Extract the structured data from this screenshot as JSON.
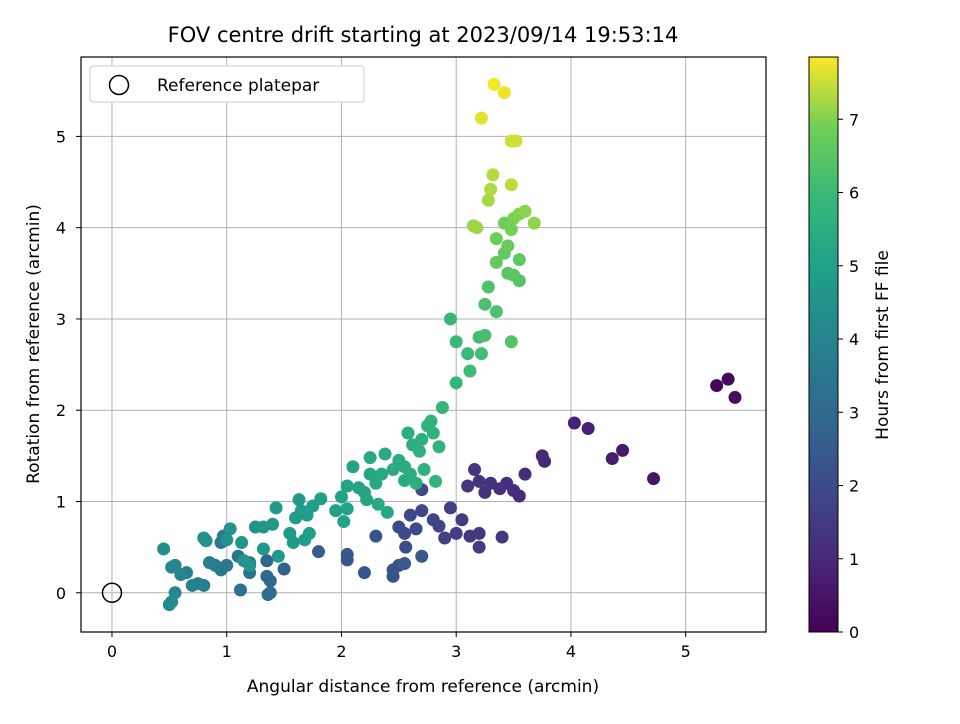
{
  "chart_data": {
    "type": "scatter",
    "title": "FOV centre drift starting at 2023/09/14 19:53:14",
    "xlabel": "Angular distance from reference (arcmin)",
    "ylabel": "Rotation from reference (arcmin)",
    "xlim": [
      -0.27,
      5.7
    ],
    "ylim": [
      -0.43,
      5.87
    ],
    "xticks": [
      0,
      1,
      2,
      3,
      4,
      5
    ],
    "yticks": [
      0,
      1,
      2,
      3,
      4,
      5
    ],
    "grid": true,
    "legend": {
      "position": "top-left",
      "entries": [
        "Reference platepar"
      ]
    },
    "reference_point": {
      "x": 0,
      "y": 0
    },
    "colorbar": {
      "label": "Hours from first FF file",
      "range": [
        0,
        7.85
      ],
      "ticks": [
        0,
        1,
        2,
        3,
        4,
        5,
        6,
        7
      ],
      "colormap": "viridis"
    },
    "points": [
      [
        5.27,
        2.27,
        0.15
      ],
      [
        5.37,
        2.34,
        0.2
      ],
      [
        5.43,
        2.14,
        0.25
      ],
      [
        4.72,
        1.25,
        0.5
      ],
      [
        4.45,
        1.56,
        0.65
      ],
      [
        4.36,
        1.47,
        0.7
      ],
      [
        4.15,
        1.8,
        0.8
      ],
      [
        4.03,
        1.86,
        0.85
      ],
      [
        3.77,
        1.44,
        1.0
      ],
      [
        3.75,
        1.5,
        1.0
      ],
      [
        3.6,
        1.3,
        1.1
      ],
      [
        3.55,
        1.06,
        1.1
      ],
      [
        3.5,
        1.12,
        1.15
      ],
      [
        3.44,
        1.2,
        1.2
      ],
      [
        3.38,
        1.14,
        1.25
      ],
      [
        3.3,
        1.2,
        1.3
      ],
      [
        3.25,
        1.1,
        1.3
      ],
      [
        3.2,
        1.22,
        1.35
      ],
      [
        3.16,
        1.35,
        1.4
      ],
      [
        3.1,
        1.17,
        1.4
      ],
      [
        3.12,
        0.62,
        1.45
      ],
      [
        3.4,
        0.61,
        1.5
      ],
      [
        3.2,
        0.65,
        1.55
      ],
      [
        3.2,
        0.5,
        1.6
      ],
      [
        3.05,
        0.8,
        1.6
      ],
      [
        3.0,
        0.65,
        1.65
      ],
      [
        2.95,
        0.93,
        1.7
      ],
      [
        2.9,
        0.6,
        1.75
      ],
      [
        2.85,
        0.73,
        1.8
      ],
      [
        2.8,
        0.8,
        1.85
      ],
      [
        2.7,
        0.9,
        1.9
      ],
      [
        2.6,
        0.85,
        1.95
      ],
      [
        2.55,
        0.65,
        2.0
      ],
      [
        2.65,
        0.7,
        2.0
      ],
      [
        2.5,
        0.72,
        2.05
      ],
      [
        2.56,
        0.5,
        2.1
      ],
      [
        2.5,
        0.3,
        2.15
      ],
      [
        2.45,
        0.25,
        2.2
      ],
      [
        2.45,
        0.18,
        2.25
      ],
      [
        2.3,
        0.62,
        2.3
      ],
      [
        2.2,
        0.22,
        2.35
      ],
      [
        2.05,
        0.42,
        2.4
      ],
      [
        2.05,
        0.36,
        2.45
      ],
      [
        2.55,
        0.32,
        2.5
      ],
      [
        2.7,
        0.4,
        2.4
      ],
      [
        2.7,
        1.13,
        1.9
      ],
      [
        1.8,
        0.45,
        2.6
      ],
      [
        1.5,
        0.26,
        2.7
      ],
      [
        1.35,
        0.35,
        2.85
      ],
      [
        1.35,
        0.18,
        3.0
      ],
      [
        1.38,
        0.13,
        3.0
      ],
      [
        1.38,
        0.0,
        3.1
      ],
      [
        1.36,
        -0.02,
        3.2
      ],
      [
        1.12,
        0.03,
        3.3
      ],
      [
        1.2,
        0.22,
        3.35
      ],
      [
        1.2,
        0.33,
        3.4
      ],
      [
        1.1,
        0.4,
        3.45
      ],
      [
        1.0,
        0.3,
        3.5
      ],
      [
        0.95,
        0.25,
        3.55
      ],
      [
        0.95,
        0.55,
        3.6
      ],
      [
        0.97,
        0.62,
        3.65
      ],
      [
        0.9,
        0.3,
        3.7
      ],
      [
        0.85,
        0.33,
        3.75
      ],
      [
        0.8,
        0.08,
        3.8
      ],
      [
        0.75,
        0.1,
        3.85
      ],
      [
        0.7,
        0.08,
        3.9
      ],
      [
        0.65,
        0.22,
        3.95
      ],
      [
        0.6,
        0.2,
        4.0
      ],
      [
        0.55,
        0.3,
        4.05
      ],
      [
        0.52,
        0.28,
        4.1
      ],
      [
        0.55,
        0.0,
        4.15
      ],
      [
        0.52,
        -0.1,
        4.2
      ],
      [
        0.5,
        -0.13,
        4.25
      ],
      [
        0.45,
        0.48,
        4.3
      ],
      [
        0.8,
        0.6,
        4.35
      ],
      [
        0.82,
        0.57,
        4.4
      ],
      [
        1.0,
        0.58,
        4.45
      ],
      [
        1.03,
        0.7,
        4.5
      ],
      [
        1.13,
        0.55,
        4.55
      ],
      [
        1.15,
        0.35,
        4.55
      ],
      [
        1.2,
        0.3,
        4.6
      ],
      [
        1.25,
        0.72,
        4.6
      ],
      [
        1.32,
        0.72,
        4.65
      ],
      [
        1.32,
        0.48,
        4.65
      ],
      [
        1.4,
        0.75,
        4.7
      ],
      [
        1.43,
        0.93,
        4.75
      ],
      [
        1.45,
        0.4,
        4.75
      ],
      [
        1.55,
        0.65,
        4.8
      ],
      [
        1.58,
        0.55,
        4.8
      ],
      [
        1.6,
        0.82,
        4.85
      ],
      [
        1.63,
        1.02,
        4.85
      ],
      [
        1.65,
        0.9,
        4.9
      ],
      [
        1.68,
        0.58,
        4.9
      ],
      [
        1.7,
        0.85,
        4.95
      ],
      [
        1.72,
        0.65,
        4.95
      ],
      [
        1.75,
        0.95,
        4.95
      ],
      [
        1.82,
        1.03,
        5.0
      ],
      [
        1.95,
        0.9,
        5.0
      ],
      [
        2.0,
        1.05,
        5.05
      ],
      [
        2.02,
        0.78,
        5.05
      ],
      [
        2.05,
        0.92,
        5.05
      ],
      [
        2.05,
        1.17,
        5.1
      ],
      [
        2.1,
        1.38,
        5.1
      ],
      [
        2.15,
        1.15,
        5.15
      ],
      [
        2.2,
        1.1,
        5.15
      ],
      [
        2.22,
        1.02,
        5.2
      ],
      [
        2.25,
        1.3,
        5.2
      ],
      [
        2.25,
        1.48,
        5.25
      ],
      [
        2.3,
        1.2,
        5.25
      ],
      [
        2.32,
        0.97,
        5.3
      ],
      [
        2.35,
        1.3,
        5.3
      ],
      [
        2.38,
        1.52,
        5.35
      ],
      [
        2.4,
        0.88,
        5.35
      ],
      [
        2.45,
        1.35,
        5.4
      ],
      [
        2.5,
        1.45,
        5.4
      ],
      [
        2.55,
        1.23,
        5.45
      ],
      [
        2.55,
        1.38,
        5.45
      ],
      [
        2.58,
        1.75,
        5.5
      ],
      [
        2.6,
        1.3,
        5.5
      ],
      [
        2.62,
        1.62,
        5.55
      ],
      [
        2.65,
        1.2,
        5.55
      ],
      [
        2.68,
        1.55,
        5.6
      ],
      [
        2.7,
        1.68,
        5.6
      ],
      [
        2.72,
        1.35,
        5.65
      ],
      [
        2.75,
        1.83,
        5.65
      ],
      [
        2.78,
        1.88,
        5.7
      ],
      [
        2.8,
        1.75,
        5.7
      ],
      [
        2.82,
        1.22,
        5.75
      ],
      [
        2.85,
        1.6,
        5.75
      ],
      [
        2.88,
        2.03,
        5.8
      ],
      [
        3.0,
        2.3,
        5.85
      ],
      [
        2.95,
        3.0,
        5.9
      ],
      [
        3.0,
        2.75,
        5.95
      ],
      [
        3.1,
        2.62,
        6.0
      ],
      [
        3.12,
        2.43,
        6.05
      ],
      [
        3.2,
        2.8,
        6.1
      ],
      [
        3.22,
        2.62,
        6.15
      ],
      [
        3.25,
        2.82,
        6.2
      ],
      [
        3.25,
        3.16,
        6.25
      ],
      [
        3.35,
        3.08,
        6.3
      ],
      [
        3.28,
        3.35,
        6.35
      ],
      [
        3.48,
        2.75,
        6.4
      ],
      [
        3.55,
        3.42,
        6.45
      ],
      [
        3.45,
        3.5,
        6.5
      ],
      [
        3.5,
        3.48,
        6.55
      ],
      [
        3.55,
        3.65,
        6.6
      ],
      [
        3.42,
        3.72,
        6.65
      ],
      [
        3.35,
        3.62,
        6.7
      ],
      [
        3.45,
        3.8,
        6.75
      ],
      [
        3.35,
        3.88,
        6.8
      ],
      [
        3.42,
        4.05,
        6.85
      ],
      [
        3.48,
        3.98,
        6.9
      ],
      [
        3.5,
        4.1,
        6.95
      ],
      [
        3.55,
        4.15,
        7.0
      ],
      [
        3.6,
        4.18,
        7.05
      ],
      [
        3.68,
        4.05,
        7.1
      ],
      [
        3.15,
        4.02,
        7.15
      ],
      [
        3.18,
        4.0,
        7.2
      ],
      [
        3.28,
        4.3,
        7.25
      ],
      [
        3.3,
        4.42,
        7.3
      ],
      [
        3.32,
        4.58,
        7.35
      ],
      [
        3.48,
        4.47,
        7.4
      ],
      [
        3.48,
        4.95,
        7.5
      ],
      [
        3.52,
        4.95,
        7.55
      ],
      [
        3.22,
        5.2,
        7.65
      ],
      [
        3.42,
        5.48,
        7.75
      ],
      [
        3.33,
        5.57,
        7.8
      ]
    ]
  }
}
